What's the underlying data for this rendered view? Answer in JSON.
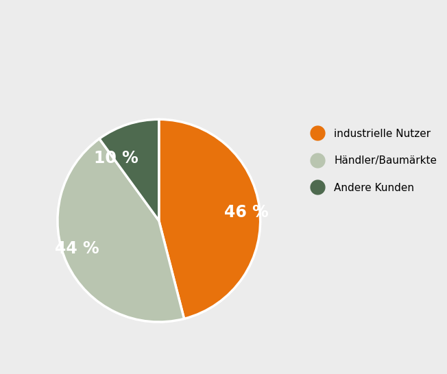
{
  "chart_data": {
    "type": "pie",
    "categories": [
      "industrielle Nutzer",
      "Händler/Baumärkte",
      "Andere Kunden"
    ],
    "values": [
      46,
      44,
      10
    ],
    "value_labels": [
      "46 %",
      "44 %",
      "10 %"
    ],
    "colors": [
      "#e8720c",
      "#b9c5b0",
      "#4e6a4f"
    ],
    "data_labels": true,
    "legend": "right"
  }
}
